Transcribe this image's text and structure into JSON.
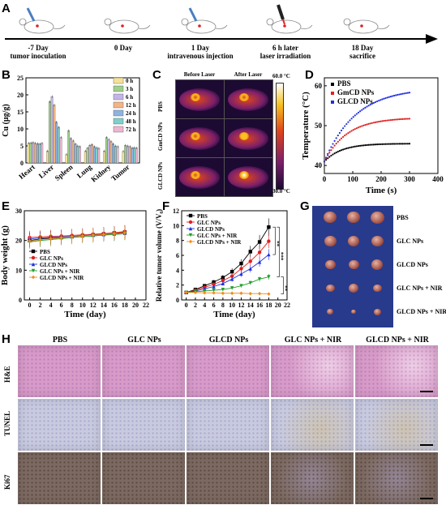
{
  "panels": {
    "A": "A",
    "B": "B",
    "C": "C",
    "D": "D",
    "E": "E",
    "F": "F",
    "G": "G",
    "H": "H"
  },
  "timeline": [
    {
      "day": "-7 Day",
      "event": "tumor inoculation"
    },
    {
      "day": "0 Day",
      "event": ""
    },
    {
      "day": "1 Day",
      "event": "intravenous injection"
    },
    {
      "day": "6 h later",
      "event": "laser irradiation"
    },
    {
      "day": "18 Day",
      "event": "sacrifice"
    }
  ],
  "panelC": {
    "col_headers": [
      "Before Laser",
      "After Laser"
    ],
    "rows": [
      "PBS",
      "GmCD NPs",
      "GLCD NPs"
    ],
    "scale_max": "60.0 °C",
    "scale_min": "30.0 °C",
    "colors": {
      "hot": "#ffffff",
      "mid": "#f7c21f",
      "warm": "#e0451c",
      "cool": "#7a1f6b",
      "cold": "#1c0a32"
    }
  },
  "panelG": {
    "labels": [
      "PBS",
      "GLC NPs",
      "GLCD NPs",
      "GLC NPs + NIR",
      "GLCD NPs + NIR"
    ],
    "background": "#283a8c"
  },
  "panelH": {
    "columns": [
      "PBS",
      "GLC NPs",
      "GLCD NPs",
      "GLC NPs + NIR",
      "GLCD NPs + NIR"
    ],
    "rows": [
      "H&E",
      "TUNEL",
      "Ki67"
    ],
    "colors": {
      "he": "#d89ac8",
      "tunel": "#c8cbe0",
      "ki67": "#7c6a62"
    }
  },
  "chart_data": [
    {
      "panel": "B",
      "type": "bar",
      "ylabel": "Cu (μg/g)",
      "ylim": [
        0,
        25
      ],
      "yticks": [
        "0",
        "5",
        "10",
        "15",
        "20",
        "25"
      ],
      "categories": [
        "Heart",
        "Liver",
        "Spleen",
        "Lung",
        "Kidney",
        "Tumor"
      ],
      "series": [
        {
          "name": "0 h",
          "color": "#f6e19a",
          "values": [
            5.8,
            3.5,
            2.5,
            3.5,
            3.5,
            3.4
          ]
        },
        {
          "name": "3 h",
          "color": "#9ed08a",
          "values": [
            5.9,
            18,
            9.5,
            4.4,
            7.5,
            5.2
          ]
        },
        {
          "name": "6 h",
          "color": "#c4b5e8",
          "values": [
            6.0,
            19.5,
            7.2,
            5.2,
            6.9,
            5.0
          ]
        },
        {
          "name": "12 h",
          "color": "#f3b585",
          "values": [
            5.8,
            17,
            6.5,
            5.4,
            6.3,
            4.8
          ]
        },
        {
          "name": "24 h",
          "color": "#8fb3e0",
          "values": [
            5.7,
            12,
            5.6,
            4.8,
            5.6,
            4.4
          ]
        },
        {
          "name": "48 h",
          "color": "#7fd0cc",
          "values": [
            5.6,
            10.5,
            5.0,
            4.5,
            5.0,
            4.5
          ]
        },
        {
          "name": "72 h",
          "color": "#efb6d3",
          "values": [
            5.8,
            7.5,
            4.8,
            4.3,
            4.8,
            4.4
          ]
        }
      ]
    },
    {
      "panel": "D",
      "type": "scatter",
      "xlabel": "Time (s)",
      "ylabel": "Temperature (°C)",
      "xlim": [
        0,
        400
      ],
      "ylim": [
        38,
        62
      ],
      "xticks": [
        "0",
        "100",
        "200",
        "300",
        "400"
      ],
      "yticks": [
        "40",
        "50",
        "60"
      ],
      "legend": "top-left",
      "series": [
        {
          "name": "PBS",
          "color": "#000000",
          "plateau": 45.5,
          "rate": 60
        },
        {
          "name": "GmCD NPs",
          "color": "#e02020",
          "plateau": 52,
          "rate": 80
        },
        {
          "name": "GLCD NPs",
          "color": "#1f2fe0",
          "plateau": 59.5,
          "rate": 110
        }
      ],
      "start": 41
    },
    {
      "panel": "E",
      "type": "line",
      "xlabel": "Time (day)",
      "ylabel": "Body weight (g)",
      "xlim": [
        -1,
        22
      ],
      "ylim": [
        0,
        30
      ],
      "xticks": [
        "0",
        "2",
        "4",
        "6",
        "8",
        "10",
        "12",
        "14",
        "16",
        "18",
        "20",
        "22"
      ],
      "yticks": [
        "0",
        "10",
        "20",
        "30"
      ],
      "x": [
        0,
        2,
        4,
        6,
        8,
        10,
        12,
        14,
        16,
        18
      ],
      "series": [
        {
          "name": "PBS",
          "color": "#000000",
          "marker": "square",
          "values": [
            20,
            20.5,
            20.8,
            21,
            21.3,
            21.6,
            21.9,
            22.2,
            22.5,
            22.8
          ]
        },
        {
          "name": "GLC NPs",
          "color": "#e02020",
          "marker": "circle",
          "values": [
            21,
            21.2,
            21.4,
            21.5,
            21.7,
            21.9,
            22.1,
            22.3,
            22.6,
            23
          ]
        },
        {
          "name": "GLCD NPs",
          "color": "#1f2fe0",
          "marker": "triangle",
          "values": [
            20.5,
            20.8,
            21,
            21.2,
            21.4,
            21.6,
            21.8,
            22,
            22.2,
            22.5
          ]
        },
        {
          "name": "GLC NPs + NIR",
          "color": "#1f9e2a",
          "marker": "tri-down",
          "values": [
            19.5,
            20,
            20.3,
            20.6,
            21,
            21.3,
            21.5,
            21.8,
            22,
            22.3
          ]
        },
        {
          "name": "GLCD NPs  + NIR",
          "color": "#f28c1c",
          "marker": "diamond",
          "values": [
            19.8,
            20.3,
            20.6,
            20.9,
            21.2,
            21.5,
            21.8,
            22,
            22.3,
            22.6
          ]
        }
      ]
    },
    {
      "panel": "F",
      "type": "line",
      "xlabel": "Time (day)",
      "ylabel": "Relative tumor volume (V/V₀)",
      "xlim": [
        -1,
        22
      ],
      "ylim": [
        0,
        12
      ],
      "xticks": [
        "0",
        "2",
        "4",
        "6",
        "8",
        "10",
        "12",
        "14",
        "16",
        "18",
        "20",
        "22"
      ],
      "yticks": [
        "0",
        "2",
        "4",
        "6",
        "8",
        "10",
        "12"
      ],
      "x": [
        0,
        2,
        4,
        6,
        8,
        10,
        12,
        14,
        16,
        18
      ],
      "significance": [
        "**",
        "***",
        "**"
      ],
      "series": [
        {
          "name": "PBS",
          "color": "#000000",
          "marker": "square",
          "values": [
            1,
            1.4,
            1.9,
            2.4,
            3,
            3.8,
            4.9,
            6.5,
            7.8,
            9.8
          ]
        },
        {
          "name": "GLC NPs",
          "color": "#e02020",
          "marker": "circle",
          "values": [
            1,
            1.3,
            1.7,
            2.1,
            2.6,
            3.2,
            4.2,
            5.2,
            6.4,
            7.9
          ]
        },
        {
          "name": "GLCD NPs",
          "color": "#1f2fe0",
          "marker": "triangle",
          "values": [
            1,
            1.2,
            1.5,
            1.8,
            2.2,
            2.8,
            3.5,
            4.2,
            5.1,
            6.1
          ]
        },
        {
          "name": "GLC NPs + NIR",
          "color": "#1f9e2a",
          "marker": "tri-down",
          "values": [
            1,
            1.1,
            1.2,
            1.3,
            1.4,
            1.6,
            1.9,
            2.3,
            2.8,
            3.1
          ]
        },
        {
          "name": "GLCD NPs + NIR",
          "color": "#f28c1c",
          "marker": "diamond",
          "values": [
            1,
            1,
            0.95,
            0.95,
            0.9,
            0.9,
            0.9,
            0.85,
            0.85,
            0.8
          ]
        }
      ]
    }
  ]
}
